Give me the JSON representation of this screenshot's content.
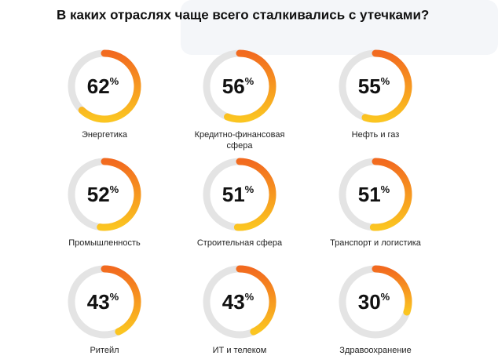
{
  "chart_data": {
    "type": "gauge",
    "title": "В каких отраслях чаще всего сталкивались с утечками?",
    "categories": [
      "Энергетика",
      "Кредитно-финансовая сфера",
      "Нефть и газ",
      "Промышленность",
      "Строительная сфера",
      "Транспорт и логистика",
      "Ритейл",
      "ИТ и телеком",
      "Здравоохранение"
    ],
    "values": [
      62,
      56,
      55,
      52,
      51,
      51,
      43,
      43,
      30
    ],
    "unit": "%",
    "range": [
      0,
      100
    ],
    "colors": [
      "#f26a1f",
      "#fbc521"
    ],
    "track_color": "#e4e4e4"
  }
}
